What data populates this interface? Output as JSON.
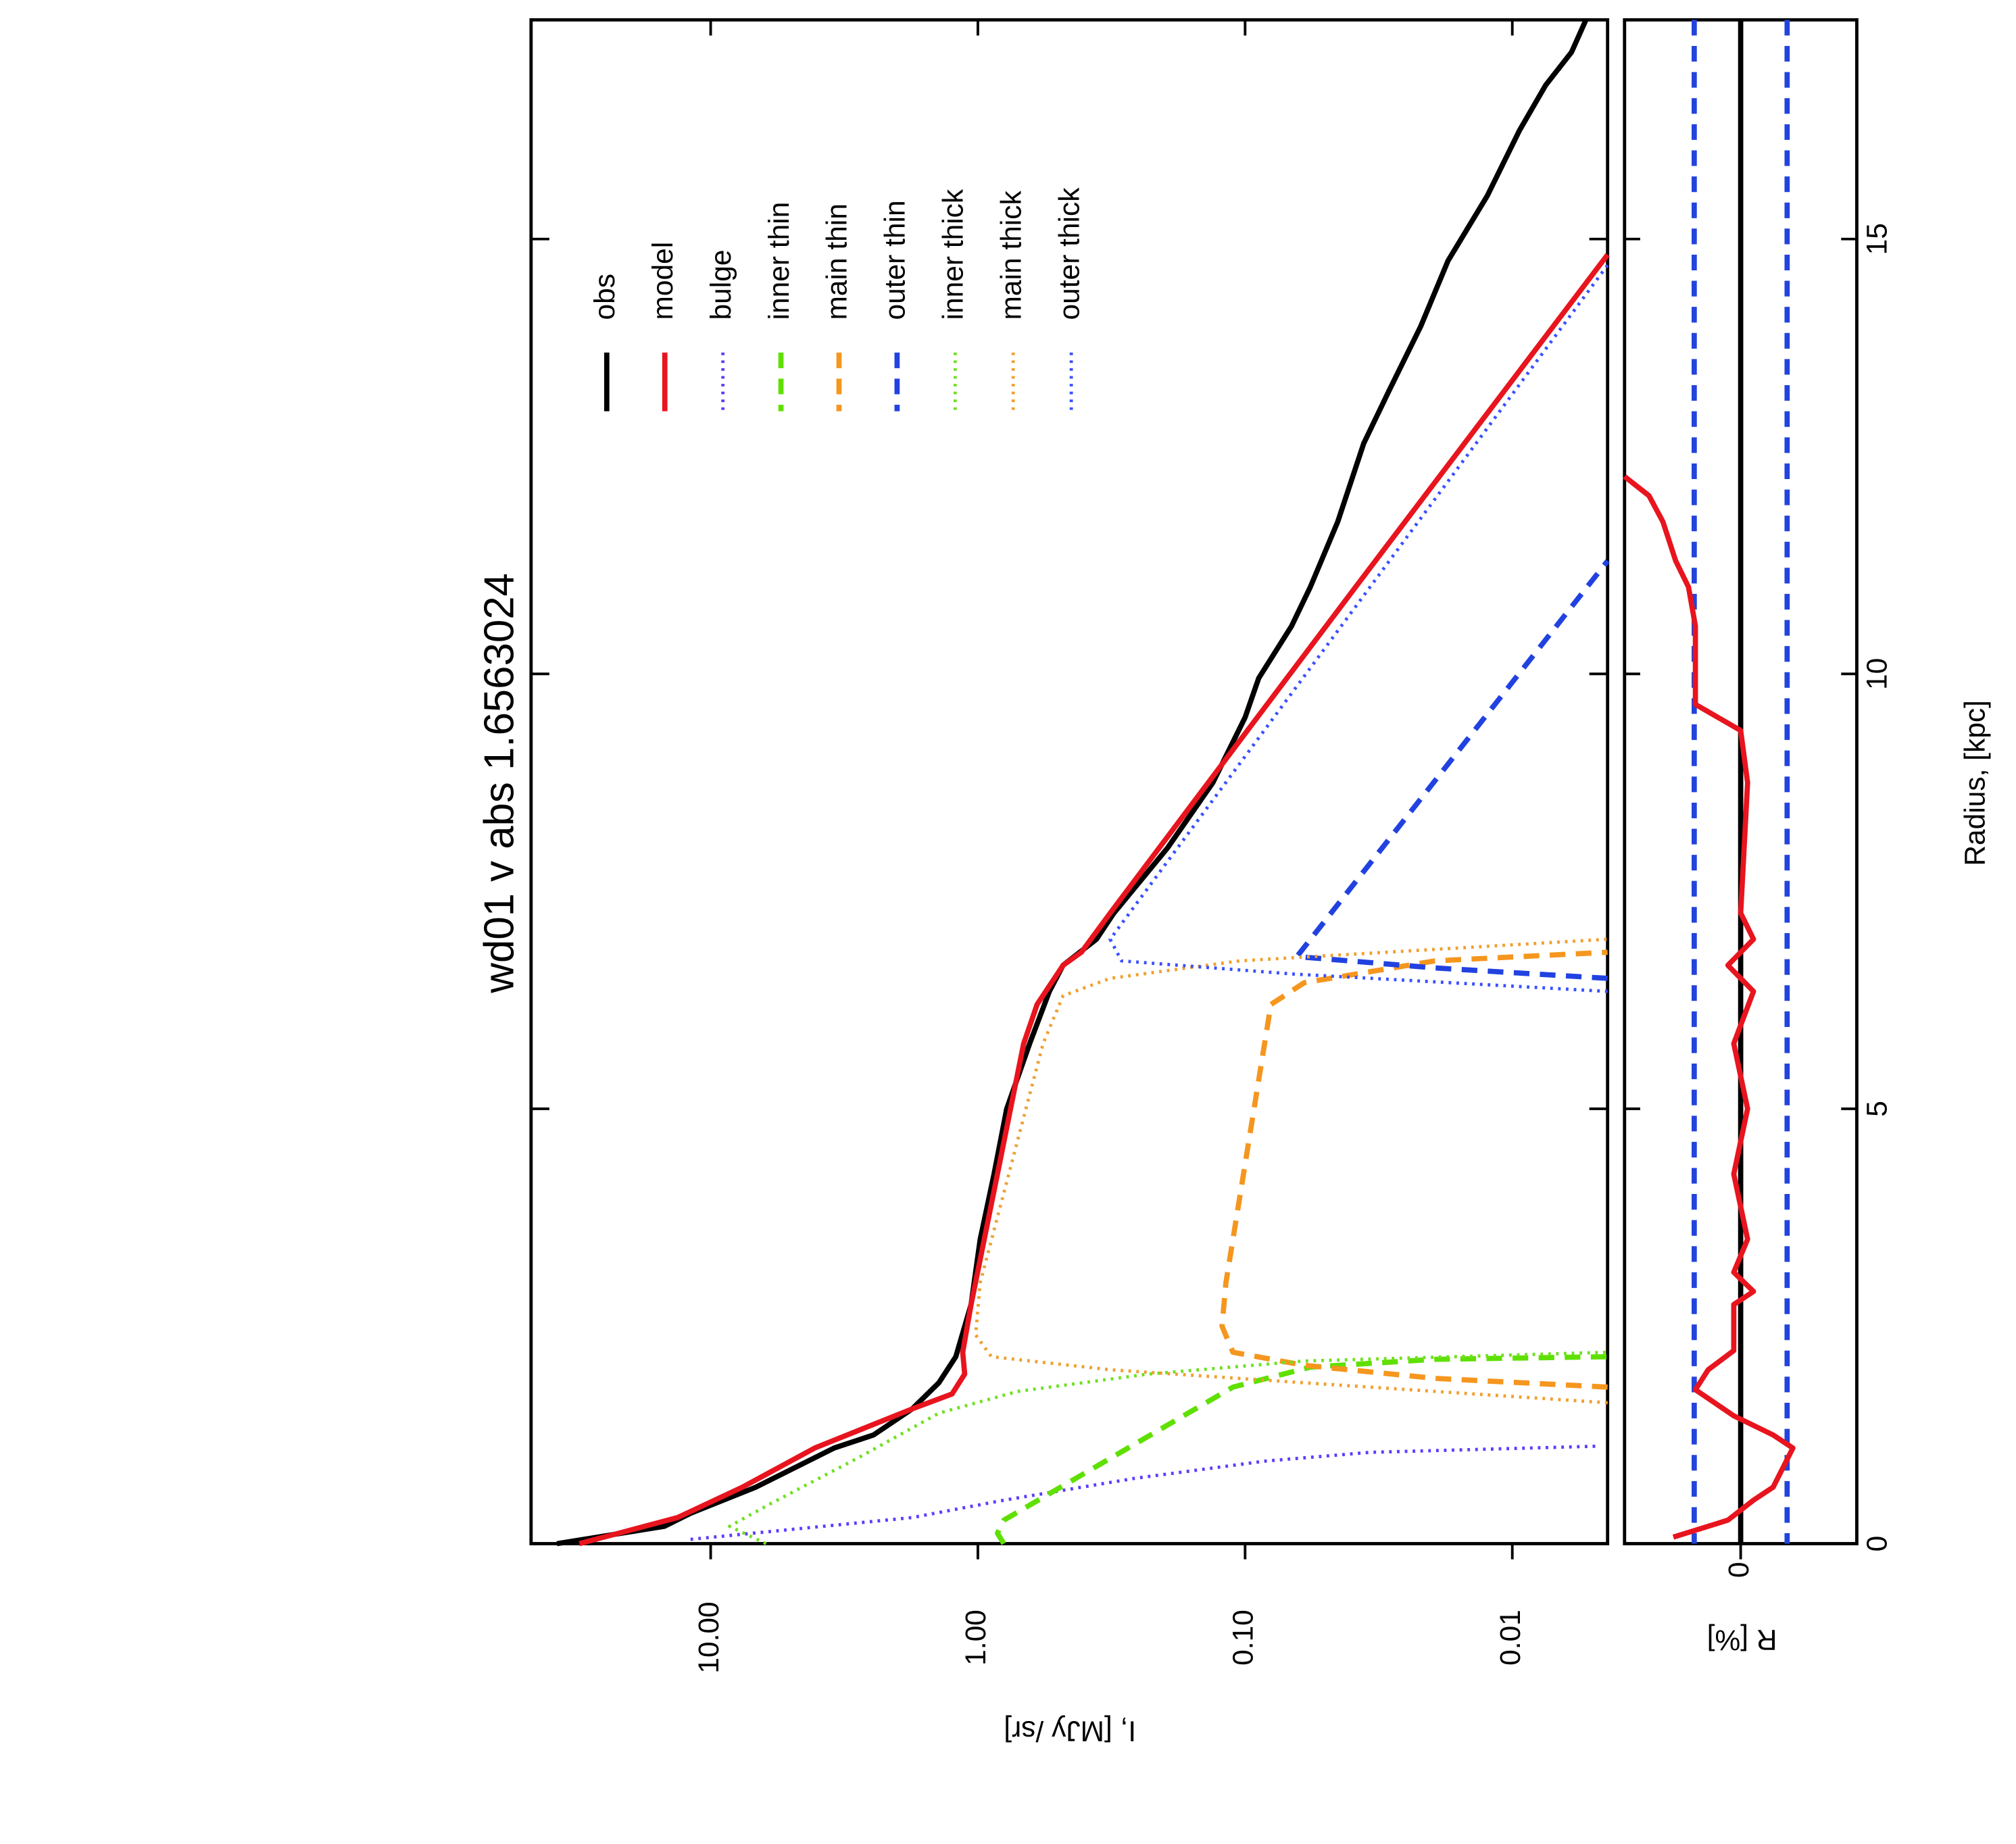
{
  "chart_data": [
    {
      "type": "line",
      "title": "wd01 v abs 1.6563024",
      "ylabel": "I, [MJy /sr]",
      "log_y": true,
      "xlim": [
        0,
        17.52
      ],
      "ylim": [
        0.0044,
        47
      ],
      "yticks": [
        {
          "value": 10,
          "label": "10.00"
        },
        {
          "value": 1,
          "label": "1.00"
        },
        {
          "value": 0.1,
          "label": "0.10"
        },
        {
          "value": 0.01,
          "label": "0.01"
        }
      ],
      "legend": "topright",
      "series": [
        {
          "name": "obs",
          "color": "#000000",
          "style": "solid",
          "width": 4,
          "x": [
            0,
            0.2,
            0.35,
            0.65,
            1.1,
            1.25,
            1.55,
            1.85,
            2.15,
            2.75,
            3.5,
            4.25,
            5.0,
            5.75,
            6.35,
            6.65,
            6.95,
            7.25,
            8.0,
            8.75,
            9.5,
            9.95,
            10.55,
            11.0,
            11.75,
            12.65,
            13.25,
            14.0,
            14.75,
            15.5,
            16.25,
            16.77,
            17.15,
            17.52
          ],
          "values": [
            37.6,
            14.9,
            11.9,
            6.78,
            3.45,
            2.46,
            1.76,
            1.4,
            1.21,
            1.06,
            0.98,
            0.87,
            0.78,
            0.64,
            0.54,
            0.48,
            0.36,
            0.31,
            0.195,
            0.132,
            0.1,
            0.089,
            0.067,
            0.057,
            0.045,
            0.036,
            0.029,
            0.022,
            0.0174,
            0.0124,
            0.0094,
            0.0075,
            0.006,
            0.0053
          ]
        },
        {
          "name": "model",
          "color": "#e8141e",
          "style": "solid",
          "width": 4,
          "x": [
            0,
            0.3,
            0.65,
            1.1,
            1.55,
            1.72,
            1.95,
            2.2,
            2.75,
            4.25,
            5.75,
            6.2,
            6.65,
            6.8,
            7.25,
            9.35,
            11.0,
            14.82
          ],
          "values": [
            31,
            13.3,
            7.6,
            4.08,
            1.76,
            1.25,
            1.12,
            1.14,
            1.06,
            0.845,
            0.674,
            0.6,
            0.48,
            0.41,
            0.32,
            0.098,
            0.0386,
            0.0044
          ]
        },
        {
          "name": "bulge",
          "color": "#5a3dff",
          "style": "dotted",
          "width": 2.5,
          "x": [
            0.05,
            0.3,
            0.5,
            0.75,
            0.95,
            1.05,
            1.12
          ],
          "values": [
            11.9,
            1.76,
            0.8,
            0.26,
            0.084,
            0.034,
            0.0048
          ]
        },
        {
          "name": "inner thin",
          "color": "#5fe000",
          "style": "dashed",
          "width": 4,
          "x": [
            0,
            0.12,
            0.27,
            1.8,
            2.03,
            2.12,
            2.15
          ],
          "values": [
            0.8,
            0.845,
            0.8,
            0.111,
            0.057,
            0.0195,
            0.0044
          ]
        },
        {
          "name": "main thin",
          "color": "#f5961e",
          "style": "dashed",
          "width": 4,
          "x": [
            1.8,
            1.9,
            2.05,
            2.2,
            2.5,
            3.0,
            6.2,
            6.45,
            6.7,
            6.8
          ],
          "values": [
            0.0044,
            0.0195,
            0.06,
            0.111,
            0.122,
            0.118,
            0.08,
            0.06,
            0.0195,
            0.0044
          ]
        },
        {
          "name": "outer thin",
          "color": "#2142e0",
          "style": "dashed",
          "width": 4,
          "x": [
            6.5,
            6.62,
            6.75,
            11.3
          ],
          "values": [
            0.0044,
            0.0195,
            0.064,
            0.0044
          ]
        },
        {
          "name": "inner thick",
          "color": "#70e020",
          "style": "dotted",
          "width": 2.5,
          "x": [
            0,
            0.2,
            0.45,
            1.0,
            1.5,
            1.75,
            1.95,
            2.1,
            2.2
          ],
          "values": [
            6.2,
            8.5,
            6.05,
            2.75,
            1.4,
            0.71,
            0.23,
            0.06,
            0.0044
          ]
        },
        {
          "name": "main thick",
          "color": "#f0a030",
          "style": "dotted",
          "width": 2.5,
          "x": [
            1.62,
            1.85,
            2.0,
            2.15,
            2.4,
            3.0,
            5.75,
            6.3,
            6.5,
            6.7,
            6.95
          ],
          "values": [
            0.0044,
            0.06,
            0.32,
            0.89,
            1.02,
            0.98,
            0.57,
            0.48,
            0.32,
            0.105,
            0.0044
          ]
        },
        {
          "name": "outer thick",
          "color": "#3a50ff",
          "style": "dotted",
          "width": 2.5,
          "x": [
            6.35,
            6.55,
            6.7,
            6.95,
            14.7
          ],
          "values": [
            0.0044,
            0.067,
            0.29,
            0.32,
            0.0044
          ]
        }
      ]
    },
    {
      "type": "line",
      "xlabel": "Radius, [kpc]",
      "ylabel": "R [%]",
      "xlim": [
        0,
        17.52
      ],
      "ylim": [
        -10,
        10
      ],
      "xticks": [
        0,
        5,
        10,
        15
      ],
      "yticks": [
        0
      ],
      "reference_lines": [
        {
          "value": 0,
          "color": "#000000",
          "style": "solid"
        },
        {
          "value": 4,
          "color": "#2244dd",
          "style": "dashed"
        },
        {
          "value": -4,
          "color": "#2244dd",
          "style": "dashed"
        }
      ],
      "series": [
        {
          "color": "#e8141e",
          "style": "solid",
          "width": 4,
          "x": [
            0.075,
            0.27,
            0.5,
            0.65,
            1.1,
            1.25,
            1.47,
            1.77,
            2.0,
            2.22,
            2.75,
            2.9,
            3.12,
            3.5,
            4.25,
            5.0,
            5.75,
            6.35,
            6.65,
            6.95,
            7.25,
            8.75,
            9.35,
            9.65,
            9.95,
            10.55,
            11.0,
            11.3,
            11.75,
            12.05,
            12.27
          ],
          "values": [
            5.8,
            1.1,
            -1.1,
            -2.8,
            -4.5,
            -2.8,
            0.6,
            3.9,
            2.8,
            0.6,
            0.6,
            -1.1,
            0.6,
            -0.6,
            0.6,
            -0.6,
            0.6,
            -1.1,
            1.1,
            -1.1,
            0,
            -0.6,
            0,
            3.9,
            3.9,
            3.9,
            4.5,
            5.6,
            6.7,
            7.9,
            10
          ]
        }
      ]
    }
  ]
}
